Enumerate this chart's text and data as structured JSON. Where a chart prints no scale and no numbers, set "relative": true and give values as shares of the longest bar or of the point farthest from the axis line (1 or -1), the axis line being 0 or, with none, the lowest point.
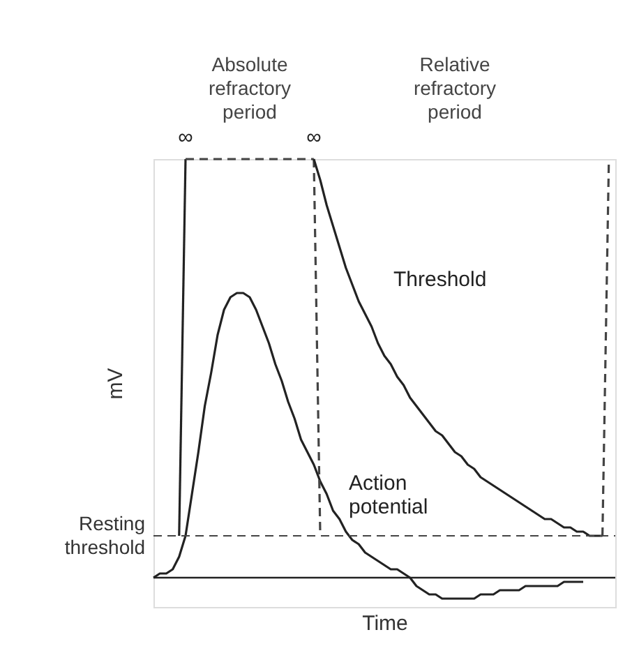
{
  "chart_data": {
    "type": "line",
    "relative": true,
    "xlabel": "Time",
    "ylabel": "mV",
    "tick_labels": false,
    "categories": [
      null,
      null,
      null,
      null,
      null,
      null,
      null,
      null,
      null,
      null,
      null,
      null,
      null,
      null,
      null,
      null,
      null,
      null,
      null,
      null,
      null,
      null,
      null,
      null,
      null,
      null,
      null,
      null,
      null,
      null,
      null,
      null,
      null,
      null,
      null,
      null,
      null,
      null,
      null,
      null,
      null,
      null,
      null,
      null,
      null,
      null,
      null,
      null,
      null,
      null,
      null,
      null,
      null,
      null,
      null,
      null,
      null,
      null,
      null,
      null,
      null,
      null,
      null,
      null,
      null,
      null,
      null,
      null,
      null,
      null,
      null,
      null,
      null
    ],
    "series": [
      {
        "color": "#222222",
        "values": [
          0,
          0.01,
          0.01,
          0.02,
          0.05,
          0.1,
          0.2,
          0.3,
          0.41,
          0.49,
          0.58,
          0.64,
          0.67,
          0.68,
          0.68,
          0.67,
          0.64,
          0.6,
          0.56,
          0.51,
          0.47,
          0.42,
          0.38,
          0.33,
          0.3,
          0.27,
          0.23,
          0.2,
          0.16,
          0.14,
          0.11,
          0.09,
          0.08,
          0.06,
          0.05,
          0.04,
          0.03,
          0.02,
          0.02,
          0.01,
          0,
          -0.02,
          -0.03,
          -0.04,
          -0.04,
          -0.05,
          -0.05,
          -0.05,
          -0.05,
          -0.05,
          -0.05,
          -0.04,
          -0.04,
          -0.04,
          -0.03,
          -0.03,
          -0.03,
          -0.03,
          -0.02,
          -0.02,
          -0.02,
          -0.02,
          -0.02,
          -0.02,
          -0.01,
          -0.01,
          -0.01,
          -0.01,
          null,
          null,
          null,
          null,
          null
        ]
      },
      {
        "color": "#222222",
        "values": [
          null,
          null,
          null,
          null,
          0.1,
          1,
          null,
          null,
          null,
          null,
          null,
          null,
          null,
          null,
          null,
          null,
          null,
          null,
          null,
          null,
          null,
          null,
          null,
          null,
          null,
          null,
          null,
          null,
          null,
          null,
          null,
          null,
          null,
          null,
          null,
          null,
          null,
          null,
          null,
          null,
          null,
          null,
          null,
          null,
          null,
          null,
          null,
          null,
          null,
          null,
          null,
          null,
          null,
          null,
          null,
          null,
          null,
          null,
          null,
          null,
          null,
          null,
          null,
          null,
          null,
          null,
          null,
          null,
          null,
          null,
          null,
          null,
          null
        ]
      },
      {
        "color": "#444444",
        "line_style": "dashed",
        "values": [
          null,
          null,
          null,
          null,
          null,
          1,
          1,
          1,
          1,
          1,
          1,
          1,
          1,
          1,
          1,
          1,
          1,
          1,
          1,
          1,
          1,
          1,
          1,
          1,
          1,
          1,
          null,
          null,
          null,
          null,
          null,
          null,
          null,
          null,
          null,
          null,
          null,
          null,
          null,
          null,
          null,
          null,
          null,
          null,
          null,
          null,
          null,
          null,
          null,
          null,
          null,
          null,
          null,
          null,
          null,
          null,
          null,
          null,
          null,
          null,
          null,
          null,
          null,
          null,
          null,
          null,
          null,
          null,
          null,
          null,
          null,
          null,
          null
        ]
      },
      {
        "color": "#444444",
        "line_style": "dashed",
        "values": [
          null,
          null,
          null,
          null,
          null,
          null,
          null,
          null,
          null,
          null,
          null,
          null,
          null,
          null,
          null,
          null,
          null,
          null,
          null,
          null,
          null,
          null,
          null,
          null,
          null,
          1,
          0.1,
          null,
          null,
          null,
          null,
          null,
          null,
          null,
          null,
          null,
          null,
          null,
          null,
          null,
          null,
          null,
          null,
          null,
          null,
          null,
          null,
          null,
          null,
          null,
          null,
          null,
          null,
          null,
          null,
          null,
          null,
          null,
          null,
          null,
          null,
          null,
          null,
          null,
          null,
          null,
          null,
          null,
          null,
          null,
          null,
          null,
          null
        ]
      },
      {
        "color": "#222222",
        "values": [
          null,
          null,
          null,
          null,
          null,
          null,
          null,
          null,
          null,
          null,
          null,
          null,
          null,
          null,
          null,
          null,
          null,
          null,
          null,
          null,
          null,
          null,
          null,
          null,
          null,
          1,
          0.95,
          0.89,
          0.84,
          0.79,
          0.74,
          0.7,
          0.66,
          0.63,
          0.6,
          0.56,
          0.53,
          0.51,
          0.48,
          0.46,
          0.43,
          0.41,
          0.39,
          0.37,
          0.35,
          0.34,
          0.32,
          0.3,
          0.29,
          0.27,
          0.26,
          0.24,
          0.23,
          0.22,
          0.21,
          0.2,
          0.19,
          0.18,
          0.17,
          0.16,
          0.15,
          0.14,
          0.14,
          0.13,
          0.12,
          0.12,
          0.11,
          0.11,
          0.1,
          0.1,
          0.1,
          null,
          null
        ]
      },
      {
        "color": "#444444",
        "line_style": "dashed",
        "values": [
          null,
          null,
          null,
          null,
          null,
          null,
          null,
          null,
          null,
          null,
          null,
          null,
          null,
          null,
          null,
          null,
          null,
          null,
          null,
          null,
          null,
          null,
          null,
          null,
          null,
          null,
          null,
          null,
          null,
          null,
          null,
          null,
          null,
          null,
          null,
          null,
          null,
          null,
          null,
          null,
          null,
          null,
          null,
          null,
          null,
          null,
          null,
          null,
          null,
          null,
          null,
          null,
          null,
          null,
          null,
          null,
          null,
          null,
          null,
          null,
          null,
          null,
          null,
          null,
          null,
          null,
          null,
          null,
          null,
          null,
          0.1,
          1,
          null
        ]
      }
    ],
    "ref_lines": [
      {
        "axis": "y",
        "value": 0.1,
        "label": "Resting threshold",
        "line_style": "dashed"
      }
    ],
    "annotations": [
      "∞",
      "∞",
      "Threshold",
      "Action potential",
      "Absolute refractory period",
      "Relative refractory period"
    ]
  }
}
